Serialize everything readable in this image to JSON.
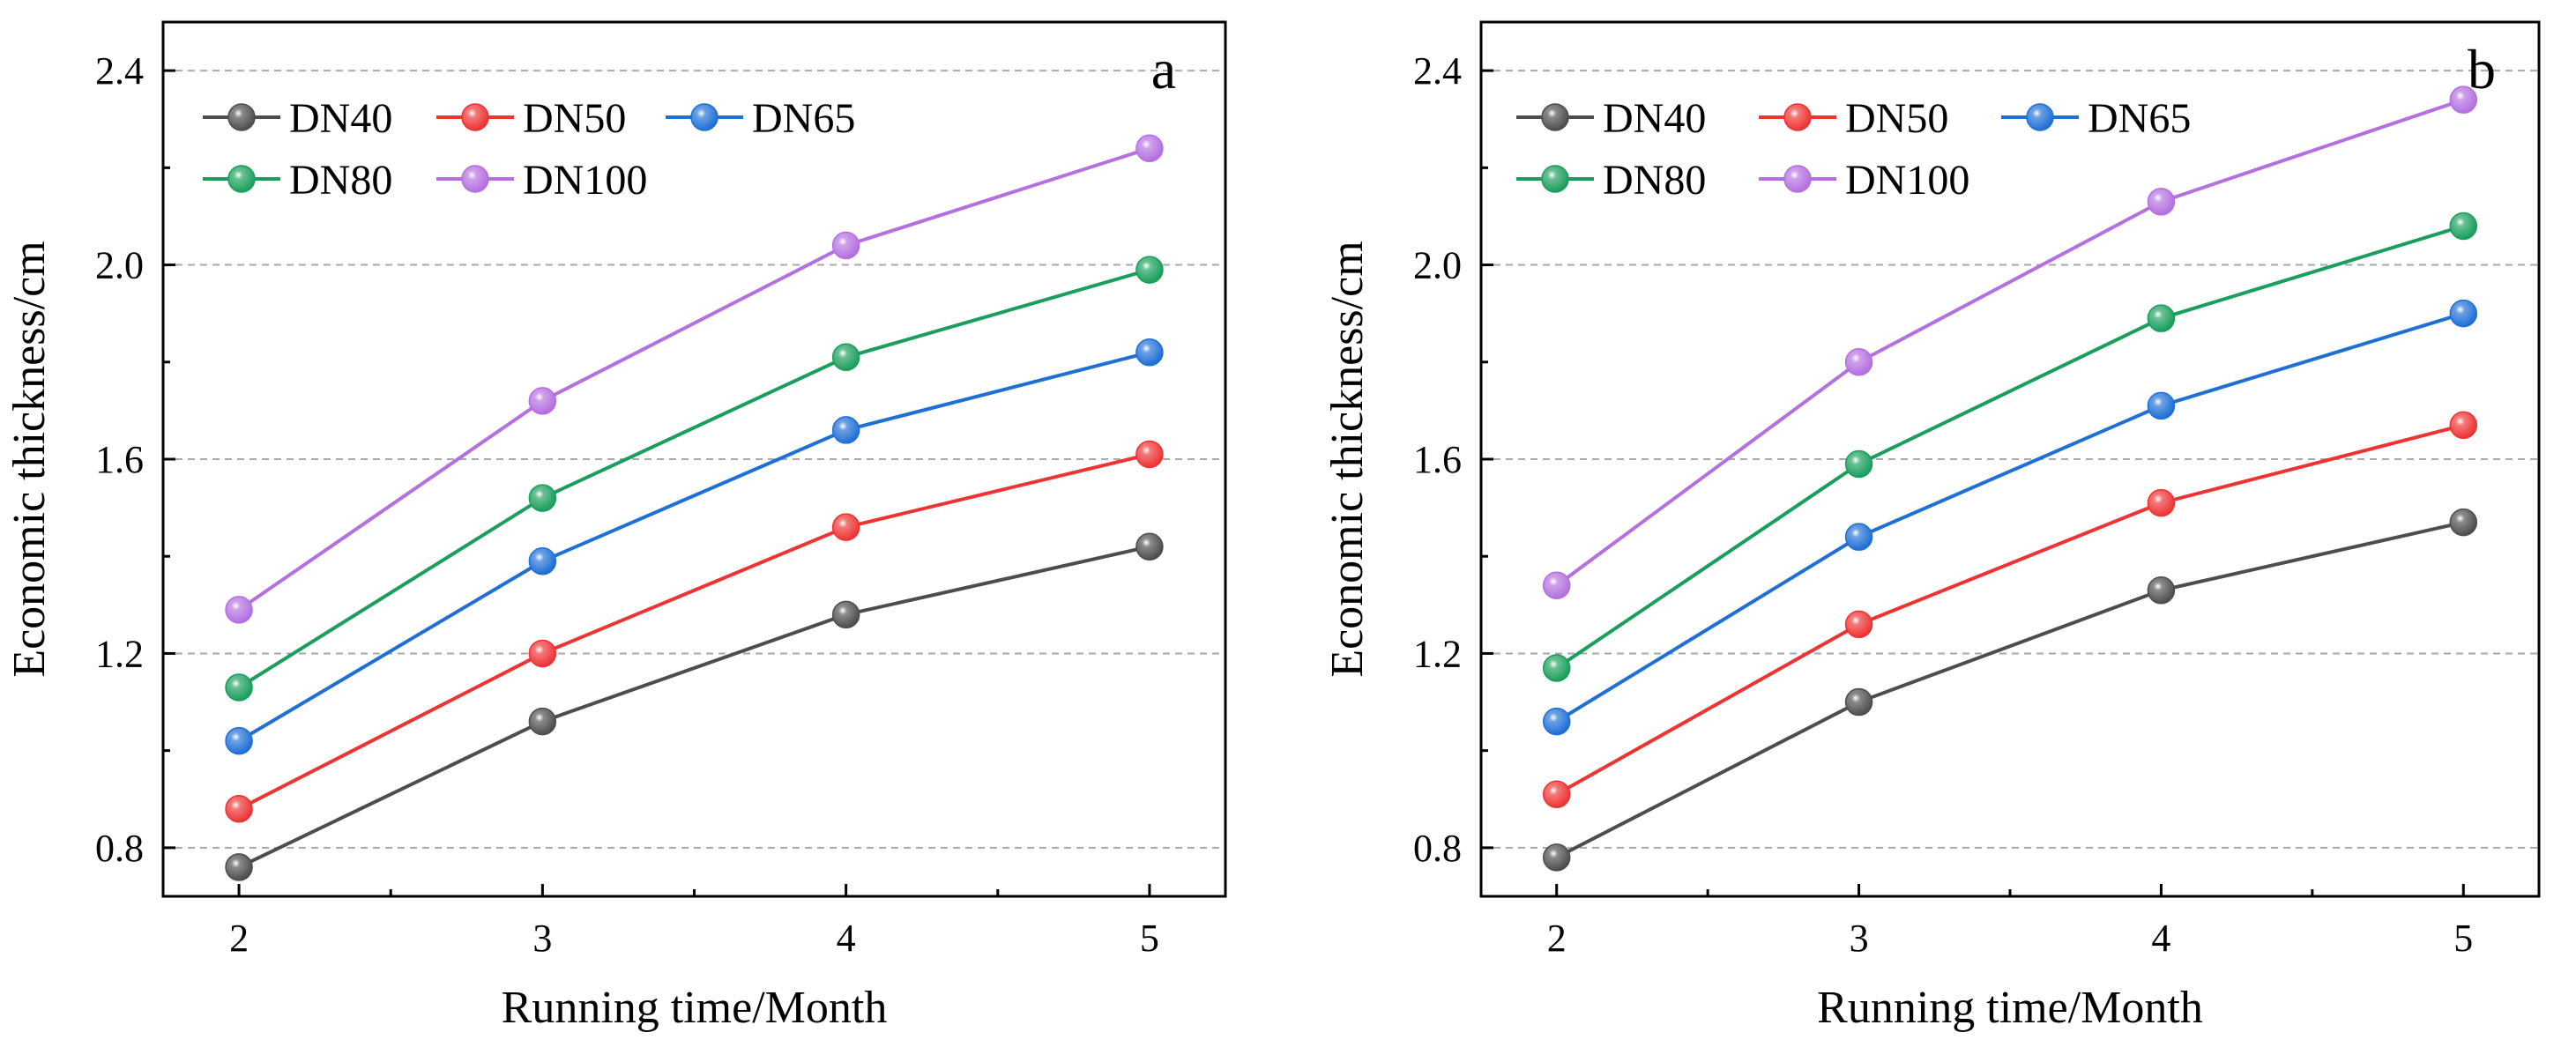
{
  "chart_data": [
    {
      "type": "line",
      "panel_label": "a",
      "xlabel": "Running time/Month",
      "ylabel": "Economic thickness/cm",
      "x": [
        2,
        3,
        4,
        5
      ],
      "x_ticks": [
        "2",
        "3",
        "4",
        "5"
      ],
      "xlim": [
        1.75,
        5.25
      ],
      "ylim": [
        0.7,
        2.5
      ],
      "y_ticks": [
        "0.8",
        "1.2",
        "1.6",
        "2.0",
        "2.4"
      ],
      "grid": "horizontal dashed",
      "legend": "top-left",
      "series": [
        {
          "name": "DN40",
          "color": "#4d4d4d",
          "values": [
            0.76,
            1.06,
            1.28,
            1.42
          ]
        },
        {
          "name": "DN50",
          "color": "#ee3333",
          "values": [
            0.88,
            1.2,
            1.46,
            1.61
          ]
        },
        {
          "name": "DN65",
          "color": "#1e6fd6",
          "values": [
            1.02,
            1.39,
            1.66,
            1.82
          ]
        },
        {
          "name": "DN80",
          "color": "#1a9e5c",
          "values": [
            1.13,
            1.52,
            1.81,
            1.99
          ]
        },
        {
          "name": "DN100",
          "color": "#b46fe0",
          "values": [
            1.29,
            1.72,
            2.04,
            2.24
          ]
        }
      ]
    },
    {
      "type": "line",
      "panel_label": "b",
      "xlabel": "Running time/Month",
      "ylabel": "Economic thickness/cm",
      "x": [
        2,
        3,
        4,
        5
      ],
      "x_ticks": [
        "2",
        "3",
        "4",
        "5"
      ],
      "xlim": [
        1.75,
        5.25
      ],
      "ylim": [
        0.7,
        2.5
      ],
      "y_ticks": [
        "0.8",
        "1.2",
        "1.6",
        "2.0",
        "2.4"
      ],
      "grid": "horizontal dashed",
      "legend": "top-left",
      "series": [
        {
          "name": "DN40",
          "color": "#4d4d4d",
          "values": [
            0.78,
            1.1,
            1.33,
            1.47
          ]
        },
        {
          "name": "DN50",
          "color": "#ee3333",
          "values": [
            0.91,
            1.26,
            1.51,
            1.67
          ]
        },
        {
          "name": "DN65",
          "color": "#1e6fd6",
          "values": [
            1.06,
            1.44,
            1.71,
            1.9
          ]
        },
        {
          "name": "DN80",
          "color": "#1a9e5c",
          "values": [
            1.17,
            1.59,
            1.89,
            2.08
          ]
        },
        {
          "name": "DN100",
          "color": "#b46fe0",
          "values": [
            1.34,
            1.8,
            2.13,
            2.34
          ]
        }
      ]
    }
  ]
}
